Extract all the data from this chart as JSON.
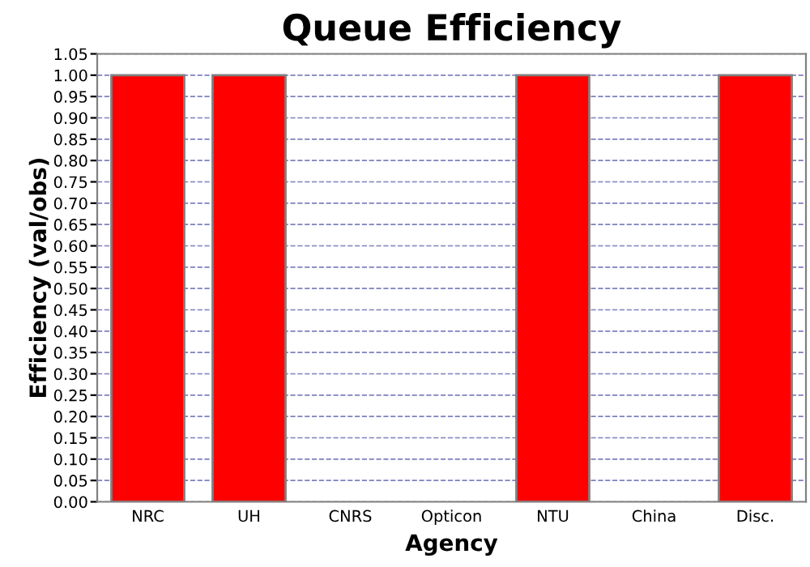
{
  "chart_data": {
    "type": "bar",
    "title": "Queue Efficiency",
    "xlabel": "Agency",
    "ylabel": "Efficiency (val/obs)",
    "categories": [
      "NRC",
      "UH",
      "CNRS",
      "Opticon",
      "NTU",
      "China",
      "Disc."
    ],
    "values": [
      1,
      1,
      0,
      0,
      1,
      0,
      1
    ],
    "color": "#ff0000",
    "ylim": [
      0,
      1.05
    ],
    "yticks": [
      {
        "value": 0,
        "label": "0.00"
      },
      {
        "value": 0.05,
        "label": "0.05"
      },
      {
        "value": 0.1,
        "label": "0.10"
      },
      {
        "value": 0.15,
        "label": "0.15"
      },
      {
        "value": 0.2,
        "label": "0.20"
      },
      {
        "value": 0.25,
        "label": "0.25"
      },
      {
        "value": 0.3,
        "label": "0.30"
      },
      {
        "value": 0.35,
        "label": "0.35"
      },
      {
        "value": 0.4,
        "label": "0.40"
      },
      {
        "value": 0.45,
        "label": "0.45"
      },
      {
        "value": 0.5,
        "label": "0.50"
      },
      {
        "value": 0.55,
        "label": "0.55"
      },
      {
        "value": 0.6,
        "label": "0.60"
      },
      {
        "value": 0.65,
        "label": "0.65"
      },
      {
        "value": 0.7,
        "label": "0.70"
      },
      {
        "value": 0.75,
        "label": "0.75"
      },
      {
        "value": 0.8,
        "label": "0.80"
      },
      {
        "value": 0.85,
        "label": "0.85"
      },
      {
        "value": 0.9,
        "label": "0.90"
      },
      {
        "value": 0.95,
        "label": "0.95"
      },
      {
        "value": 1,
        "label": "1.00"
      },
      {
        "value": 1.05,
        "label": "1.05"
      }
    ],
    "grid": "y"
  }
}
